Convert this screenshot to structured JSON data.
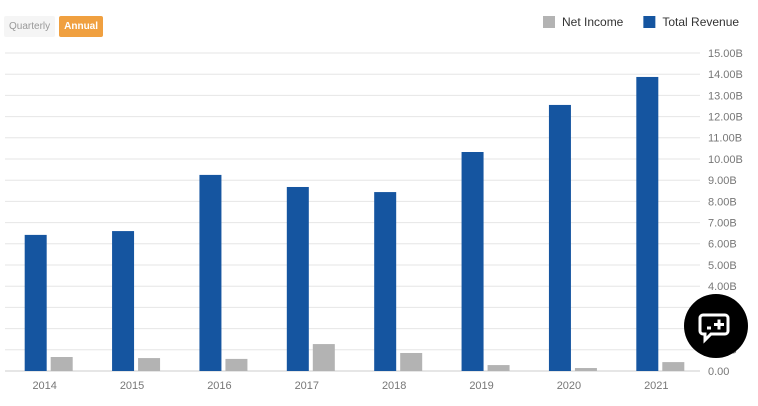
{
  "toggle": {
    "options": [
      "Quarterly",
      "Annual"
    ],
    "active": 1
  },
  "chart_data": {
    "type": "bar",
    "categories": [
      "2014",
      "2015",
      "2016",
      "2017",
      "2018",
      "2019",
      "2020",
      "2021"
    ],
    "series": [
      {
        "name": "Net Income",
        "color": "#b3b3b3",
        "values": [
          0.66,
          0.61,
          0.57,
          1.27,
          0.85,
          0.28,
          0.14,
          0.42
        ]
      },
      {
        "name": "Total Revenue",
        "color": "#1555a0",
        "values": [
          6.42,
          6.6,
          9.25,
          8.68,
          8.44,
          10.33,
          12.55,
          13.87
        ]
      }
    ],
    "ylim": [
      0,
      15
    ],
    "yticks": [
      {
        "value": 0,
        "label": "0.00"
      },
      {
        "value": 1,
        "label": "1.00B"
      },
      {
        "value": 2,
        "label": "2.00B"
      },
      {
        "value": 3,
        "label": "3.00B"
      },
      {
        "value": 4,
        "label": "4.00B"
      },
      {
        "value": 5,
        "label": "5.00B"
      },
      {
        "value": 6,
        "label": "6.00B"
      },
      {
        "value": 7,
        "label": "7.00B"
      },
      {
        "value": 8,
        "label": "8.00B"
      },
      {
        "value": 9,
        "label": "9.00B"
      },
      {
        "value": 10,
        "label": "10.00B"
      },
      {
        "value": 11,
        "label": "11.00B"
      },
      {
        "value": 12,
        "label": "12.00B"
      },
      {
        "value": 13,
        "label": "13.00B"
      },
      {
        "value": 14,
        "label": "14.00B"
      },
      {
        "value": 15,
        "label": "15.00B"
      }
    ],
    "grid": true,
    "legend": "top-right"
  }
}
